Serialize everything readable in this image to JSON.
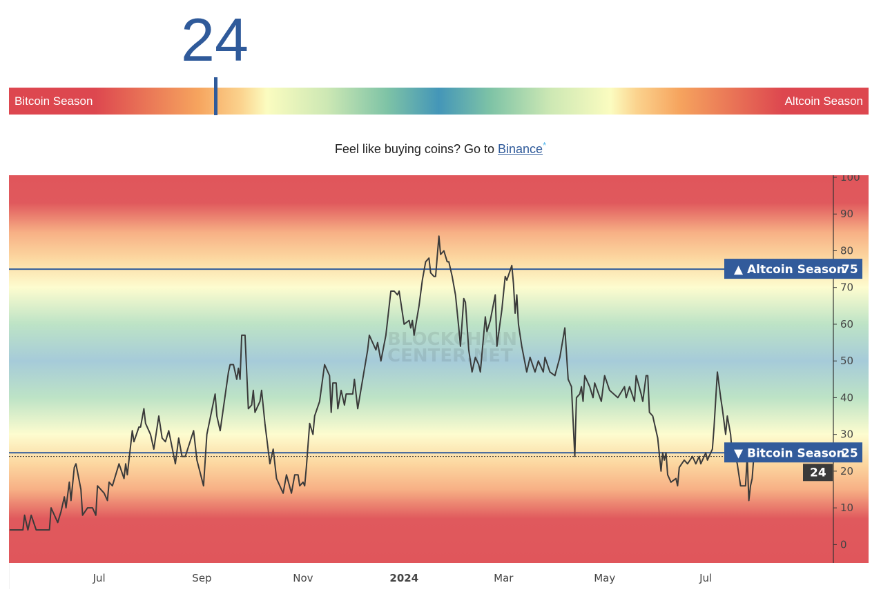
{
  "index": {
    "value": "24",
    "position_pct": 24
  },
  "gauge": {
    "left_label": "Bitcoin Season",
    "right_label": "Altcoin Season"
  },
  "promo": {
    "text": "Feel like buying coins? Go to ",
    "link": "Binance",
    "asterisk": "*"
  },
  "watermark": [
    "BLOCKCHAIN",
    "CENTER.NET"
  ],
  "colors": {
    "accent": "#2f5a9a",
    "line": "#3a3a3a",
    "red": "#e0565b",
    "blue": "#a5cbd8"
  },
  "chart_data": {
    "type": "line",
    "title": "",
    "xlabel": "",
    "ylabel": "",
    "xlim": [
      "2023-05-08",
      "2024-09-16"
    ],
    "ylim": [
      -5,
      100
    ],
    "x_ticks": [
      {
        "date": "2023-07-01",
        "label": "Jul"
      },
      {
        "date": "2023-09-01",
        "label": "Sep"
      },
      {
        "date": "2023-11-01",
        "label": "Nov"
      },
      {
        "date": "2024-01-01",
        "label": "2024",
        "bold": true
      },
      {
        "date": "2024-03-01",
        "label": "Mar"
      },
      {
        "date": "2024-05-01",
        "label": "May"
      },
      {
        "date": "2024-07-01",
        "label": "Jul"
      }
    ],
    "y_ticks": [
      0,
      10,
      20,
      30,
      40,
      50,
      60,
      70,
      80,
      90,
      100
    ],
    "y_axis_side": "right",
    "grid": false,
    "reference_lines": [
      {
        "value": 75,
        "label": "▲ Altcoin Season",
        "value_label": "75"
      },
      {
        "value": 25,
        "label": "▼ Bitcoin Season",
        "value_label": "25"
      }
    ],
    "current": {
      "value": 24,
      "label": "24"
    },
    "series": [
      {
        "points": [
          [
            "2023-05-08",
            4
          ],
          [
            "2023-05-16",
            4
          ],
          [
            "2023-05-17",
            8
          ],
          [
            "2023-05-19",
            4
          ],
          [
            "2023-05-21",
            8
          ],
          [
            "2023-05-24",
            4
          ],
          [
            "2023-06-01",
            4
          ],
          [
            "2023-06-02",
            10
          ],
          [
            "2023-06-06",
            6
          ],
          [
            "2023-06-08",
            9
          ],
          [
            "2023-06-10",
            13
          ],
          [
            "2023-06-11",
            10
          ],
          [
            "2023-06-13",
            17
          ],
          [
            "2023-06-14",
            12
          ],
          [
            "2023-06-16",
            21
          ],
          [
            "2023-06-17",
            22
          ],
          [
            "2023-06-20",
            15
          ],
          [
            "2023-06-21",
            8
          ],
          [
            "2023-06-24",
            10
          ],
          [
            "2023-06-27",
            10
          ],
          [
            "2023-06-29",
            8
          ],
          [
            "2023-06-30",
            16
          ],
          [
            "2023-07-04",
            14
          ],
          [
            "2023-07-06",
            12
          ],
          [
            "2023-07-07",
            17
          ],
          [
            "2023-07-09",
            16
          ],
          [
            "2023-07-13",
            22
          ],
          [
            "2023-07-16",
            18
          ],
          [
            "2023-07-17",
            22
          ],
          [
            "2023-07-18",
            19
          ],
          [
            "2023-07-21",
            31
          ],
          [
            "2023-07-22",
            28
          ],
          [
            "2023-07-25",
            32
          ],
          [
            "2023-07-26",
            32
          ],
          [
            "2023-07-28",
            37
          ],
          [
            "2023-07-29",
            33
          ],
          [
            "2023-08-01",
            30
          ],
          [
            "2023-08-03",
            26
          ],
          [
            "2023-08-06",
            35
          ],
          [
            "2023-08-08",
            29
          ],
          [
            "2023-08-10",
            28
          ],
          [
            "2023-08-12",
            31
          ],
          [
            "2023-08-16",
            22
          ],
          [
            "2023-08-18",
            29
          ],
          [
            "2023-08-20",
            24
          ],
          [
            "2023-08-22",
            24
          ],
          [
            "2023-08-27",
            31
          ],
          [
            "2023-08-29",
            23
          ],
          [
            "2023-09-02",
            16
          ],
          [
            "2023-09-04",
            30
          ],
          [
            "2023-09-09",
            41
          ],
          [
            "2023-09-10",
            35
          ],
          [
            "2023-09-12",
            31
          ],
          [
            "2023-09-17",
            47
          ],
          [
            "2023-09-18",
            49
          ],
          [
            "2023-09-20",
            49
          ],
          [
            "2023-09-22",
            45
          ],
          [
            "2023-09-23",
            48
          ],
          [
            "2023-09-24",
            45
          ],
          [
            "2023-09-25",
            57
          ],
          [
            "2023-09-27",
            57
          ],
          [
            "2023-09-29",
            37
          ],
          [
            "2023-10-01",
            38
          ],
          [
            "2023-10-02",
            42
          ],
          [
            "2023-10-03",
            36
          ],
          [
            "2023-10-06",
            39
          ],
          [
            "2023-10-07",
            42
          ],
          [
            "2023-10-09",
            33
          ],
          [
            "2023-10-12",
            22
          ],
          [
            "2023-10-14",
            26
          ],
          [
            "2023-10-16",
            18
          ],
          [
            "2023-10-20",
            14
          ],
          [
            "2023-10-22",
            19
          ],
          [
            "2023-10-25",
            14
          ],
          [
            "2023-10-27",
            19
          ],
          [
            "2023-10-29",
            19
          ],
          [
            "2023-10-30",
            16
          ],
          [
            "2023-11-01",
            17
          ],
          [
            "2023-11-02",
            16
          ],
          [
            "2023-11-03",
            21
          ],
          [
            "2023-11-05",
            33
          ],
          [
            "2023-11-07",
            30
          ],
          [
            "2023-11-08",
            35
          ],
          [
            "2023-11-11",
            39
          ],
          [
            "2023-11-14",
            49
          ],
          [
            "2023-11-17",
            46
          ],
          [
            "2023-11-18",
            36
          ],
          [
            "2023-11-19",
            44
          ],
          [
            "2023-11-21",
            44
          ],
          [
            "2023-11-22",
            37
          ],
          [
            "2023-11-24",
            42
          ],
          [
            "2023-11-26",
            38
          ],
          [
            "2023-11-27",
            41
          ],
          [
            "2023-12-01",
            41
          ],
          [
            "2023-12-02",
            45
          ],
          [
            "2023-12-04",
            37
          ],
          [
            "2023-12-07",
            45
          ],
          [
            "2023-12-10",
            53
          ],
          [
            "2023-12-11",
            57
          ],
          [
            "2023-12-13",
            55
          ],
          [
            "2023-12-15",
            53
          ],
          [
            "2023-12-16",
            55
          ],
          [
            "2023-12-18",
            50
          ],
          [
            "2023-12-21",
            57
          ],
          [
            "2023-12-24",
            69
          ],
          [
            "2023-12-26",
            69
          ],
          [
            "2023-12-28",
            68
          ],
          [
            "2023-12-29",
            69
          ],
          [
            "2024-01-01",
            60
          ],
          [
            "2024-01-04",
            61
          ],
          [
            "2024-01-05",
            59
          ],
          [
            "2024-01-06",
            61
          ],
          [
            "2024-01-07",
            57
          ],
          [
            "2024-01-10",
            65
          ],
          [
            "2024-01-12",
            72
          ],
          [
            "2024-01-14",
            77
          ],
          [
            "2024-01-16",
            78
          ],
          [
            "2024-01-17",
            74
          ],
          [
            "2024-01-19",
            73
          ],
          [
            "2024-01-20",
            73
          ],
          [
            "2024-01-22",
            84
          ],
          [
            "2024-01-23",
            79
          ],
          [
            "2024-01-25",
            80
          ],
          [
            "2024-01-27",
            77
          ],
          [
            "2024-01-28",
            77
          ],
          [
            "2024-01-30",
            73
          ],
          [
            "2024-02-01",
            68
          ],
          [
            "2024-02-03",
            59
          ],
          [
            "2024-02-04",
            54
          ],
          [
            "2024-02-06",
            67
          ],
          [
            "2024-02-07",
            66
          ],
          [
            "2024-02-09",
            53
          ],
          [
            "2024-02-11",
            47
          ],
          [
            "2024-02-13",
            51
          ],
          [
            "2024-02-15",
            49
          ],
          [
            "2024-02-16",
            47
          ],
          [
            "2024-02-19",
            62
          ],
          [
            "2024-02-20",
            58
          ],
          [
            "2024-02-22",
            61
          ],
          [
            "2024-02-25",
            68
          ],
          [
            "2024-02-26",
            54
          ],
          [
            "2024-02-29",
            64
          ],
          [
            "2024-03-02",
            73
          ],
          [
            "2024-03-03",
            72
          ],
          [
            "2024-03-06",
            76
          ],
          [
            "2024-03-07",
            71
          ],
          [
            "2024-03-08",
            63
          ],
          [
            "2024-03-09",
            68
          ],
          [
            "2024-03-10",
            60
          ],
          [
            "2024-03-12",
            54
          ],
          [
            "2024-03-15",
            47
          ],
          [
            "2024-03-17",
            51
          ],
          [
            "2024-03-20",
            47
          ],
          [
            "2024-03-22",
            50
          ],
          [
            "2024-03-25",
            47
          ],
          [
            "2024-03-26",
            51
          ],
          [
            "2024-03-29",
            47
          ],
          [
            "2024-04-01",
            46
          ],
          [
            "2024-04-04",
            51
          ],
          [
            "2024-04-07",
            59
          ],
          [
            "2024-04-09",
            45
          ],
          [
            "2024-04-11",
            43
          ],
          [
            "2024-04-13",
            24
          ],
          [
            "2024-04-14",
            40
          ],
          [
            "2024-04-16",
            41
          ],
          [
            "2024-04-17",
            43
          ],
          [
            "2024-04-18",
            39
          ],
          [
            "2024-04-19",
            46
          ],
          [
            "2024-04-22",
            43
          ],
          [
            "2024-04-24",
            40
          ],
          [
            "2024-04-25",
            44
          ],
          [
            "2024-04-29",
            39
          ],
          [
            "2024-05-01",
            46
          ],
          [
            "2024-05-04",
            42
          ],
          [
            "2024-05-09",
            40
          ],
          [
            "2024-05-13",
            43
          ],
          [
            "2024-05-14",
            40
          ],
          [
            "2024-05-16",
            43
          ],
          [
            "2024-05-19",
            39
          ],
          [
            "2024-05-20",
            46
          ],
          [
            "2024-05-23",
            41
          ],
          [
            "2024-05-24",
            39
          ],
          [
            "2024-05-26",
            46
          ],
          [
            "2024-05-27",
            46
          ],
          [
            "2024-05-28",
            36
          ],
          [
            "2024-05-30",
            35
          ],
          [
            "2024-06-02",
            29
          ],
          [
            "2024-06-04",
            20
          ],
          [
            "2024-06-05",
            25
          ],
          [
            "2024-06-06",
            23
          ],
          [
            "2024-06-07",
            25
          ],
          [
            "2024-06-08",
            19
          ],
          [
            "2024-06-10",
            17
          ],
          [
            "2024-06-13",
            18
          ],
          [
            "2024-06-14",
            16
          ],
          [
            "2024-06-15",
            21
          ],
          [
            "2024-06-18",
            23
          ],
          [
            "2024-06-20",
            22
          ],
          [
            "2024-06-23",
            24
          ],
          [
            "2024-06-25",
            22
          ],
          [
            "2024-06-27",
            24
          ],
          [
            "2024-06-28",
            22
          ],
          [
            "2024-07-01",
            25
          ],
          [
            "2024-07-02",
            23
          ],
          [
            "2024-07-05",
            26
          ],
          [
            "2024-07-06",
            32
          ],
          [
            "2024-07-08",
            47
          ],
          [
            "2024-07-10",
            40
          ],
          [
            "2024-07-11",
            37
          ],
          [
            "2024-07-13",
            30
          ],
          [
            "2024-07-14",
            35
          ],
          [
            "2024-07-16",
            30
          ],
          [
            "2024-07-17",
            24
          ],
          [
            "2024-07-19",
            24
          ],
          [
            "2024-07-20",
            22
          ],
          [
            "2024-07-22",
            16
          ],
          [
            "2024-07-25",
            16
          ],
          [
            "2024-07-26",
            24
          ],
          [
            "2024-07-27",
            12
          ],
          [
            "2024-07-28",
            16
          ],
          [
            "2024-07-29",
            18
          ],
          [
            "2024-07-30",
            24
          ]
        ]
      }
    ]
  }
}
